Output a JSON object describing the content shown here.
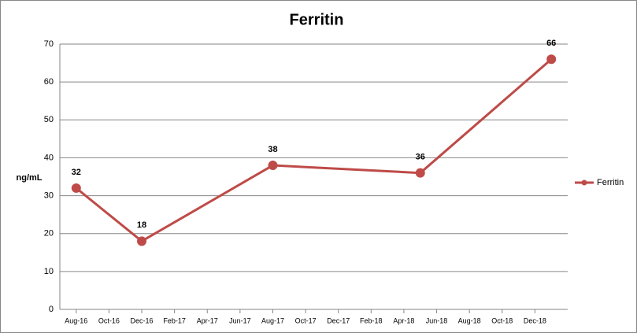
{
  "chart_data": {
    "type": "line",
    "title": "Ferritin",
    "y_label": "ng/mL",
    "x": [
      "2016-08",
      "2016-12",
      "2017-08",
      "2018-05",
      "2019-01"
    ],
    "xlim": [
      "2016-07",
      "2019-02"
    ],
    "xticks": [
      {
        "value": "2016-08",
        "label": "Aug-16"
      },
      {
        "value": "2016-10",
        "label": "Oct-16"
      },
      {
        "value": "2016-12",
        "label": "Dec-16"
      },
      {
        "value": "2017-02",
        "label": "Feb-17"
      },
      {
        "value": "2017-04",
        "label": "Apr-17"
      },
      {
        "value": "2017-06",
        "label": "Jun-17"
      },
      {
        "value": "2017-08",
        "label": "Aug-17"
      },
      {
        "value": "2017-10",
        "label": "Oct-17"
      },
      {
        "value": "2017-12",
        "label": "Dec-17"
      },
      {
        "value": "2018-02",
        "label": "Feb-18"
      },
      {
        "value": "2018-04",
        "label": "Apr-18"
      },
      {
        "value": "2018-06",
        "label": "Jun-18"
      },
      {
        "value": "2018-08",
        "label": "Aug-18"
      },
      {
        "value": "2018-10",
        "label": "Oct-18"
      },
      {
        "value": "2018-12",
        "label": "Dec-18"
      }
    ],
    "series": [
      {
        "name": "Ferritin",
        "color": "#be4b48",
        "values": [
          32,
          18,
          38,
          36,
          66
        ]
      }
    ],
    "ylim": [
      0,
      70
    ],
    "yticks": [
      0,
      10,
      20,
      30,
      40,
      50,
      60,
      70
    ],
    "grid": true,
    "legend": "right"
  }
}
